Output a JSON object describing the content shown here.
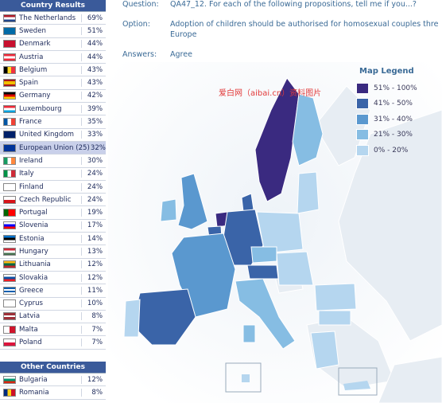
{
  "country_results": {
    "header": "Country Results",
    "rows": [
      {
        "name": "The Netherlands",
        "value": "69%",
        "flag": "netherlands-flag"
      },
      {
        "name": "Sweden",
        "value": "51%",
        "flag": "sweden-flag"
      },
      {
        "name": "Denmark",
        "value": "44%",
        "flag": "denmark-flag"
      },
      {
        "name": "Austria",
        "value": "44%",
        "flag": "austria-flag"
      },
      {
        "name": "Belgium",
        "value": "43%",
        "flag": "belgium-flag"
      },
      {
        "name": "Spain",
        "value": "43%",
        "flag": "spain-flag"
      },
      {
        "name": "Germany",
        "value": "42%",
        "flag": "germany-flag"
      },
      {
        "name": "Luxembourg",
        "value": "39%",
        "flag": "luxembourg-flag"
      },
      {
        "name": "France",
        "value": "35%",
        "flag": "france-flag"
      },
      {
        "name": "United Kingdom",
        "value": "33%",
        "flag": "uk-flag"
      },
      {
        "name": "European Union (25)",
        "value": "32%",
        "flag": "eu-flag"
      },
      {
        "name": "Ireland",
        "value": "30%",
        "flag": "ireland-flag"
      },
      {
        "name": "Italy",
        "value": "24%",
        "flag": "italy-flag"
      },
      {
        "name": "Finland",
        "value": "24%",
        "flag": "finland-flag"
      },
      {
        "name": "Czech Republic",
        "value": "24%",
        "flag": "czech-flag"
      },
      {
        "name": "Portugal",
        "value": "19%",
        "flag": "portugal-flag"
      },
      {
        "name": "Slovenia",
        "value": "17%",
        "flag": "slovenia-flag"
      },
      {
        "name": "Estonia",
        "value": "14%",
        "flag": "estonia-flag"
      },
      {
        "name": "Hungary",
        "value": "13%",
        "flag": "hungary-flag"
      },
      {
        "name": "Lithuania",
        "value": "12%",
        "flag": "lithuania-flag"
      },
      {
        "name": "Slovakia",
        "value": "12%",
        "flag": "slovakia-flag"
      },
      {
        "name": "Greece",
        "value": "11%",
        "flag": "greece-flag"
      },
      {
        "name": "Cyprus",
        "value": "10%",
        "flag": "cyprus-flag"
      },
      {
        "name": "Latvia",
        "value": "8%",
        "flag": "latvia-flag"
      },
      {
        "name": "Malta",
        "value": "7%",
        "flag": "malta-flag"
      },
      {
        "name": "Poland",
        "value": "7%",
        "flag": "poland-flag"
      }
    ]
  },
  "other_countries": {
    "header": "Other Countries",
    "rows": [
      {
        "name": "Bulgaria",
        "value": "12%",
        "flag": "bulgaria-flag"
      },
      {
        "name": "Romania",
        "value": "8%",
        "flag": "romania-flag"
      }
    ]
  },
  "question": {
    "question_label": "Question:",
    "question_text": "QA47_12. For each of the following propositions, tell me if you...?",
    "option_label": "Option:",
    "option_text_line1": "Adoption of children should be authorised for homosexual couples thre",
    "option_text_line2": "Europe",
    "answers_label": "Answers:",
    "answers_text": "Agree"
  },
  "legend": {
    "title": "Map Legend",
    "items": [
      {
        "label": "51% - 100%",
        "color": "#3a2a80"
      },
      {
        "label": "41% - 50%",
        "color": "#3a64a8"
      },
      {
        "label": "31% - 40%",
        "color": "#5a98cf"
      },
      {
        "label": "21% - 30%",
        "color": "#86bde3"
      },
      {
        "label": "0% - 20%",
        "color": "#b5d6ef"
      }
    ]
  },
  "watermark": "爱白网（aibai.cn）资料图片",
  "colors": {
    "header_bg": "#3a5a9a",
    "eu_row_bg": "#c9d0ea",
    "sea": "#ffffff",
    "land_other": "#e8eef4"
  }
}
